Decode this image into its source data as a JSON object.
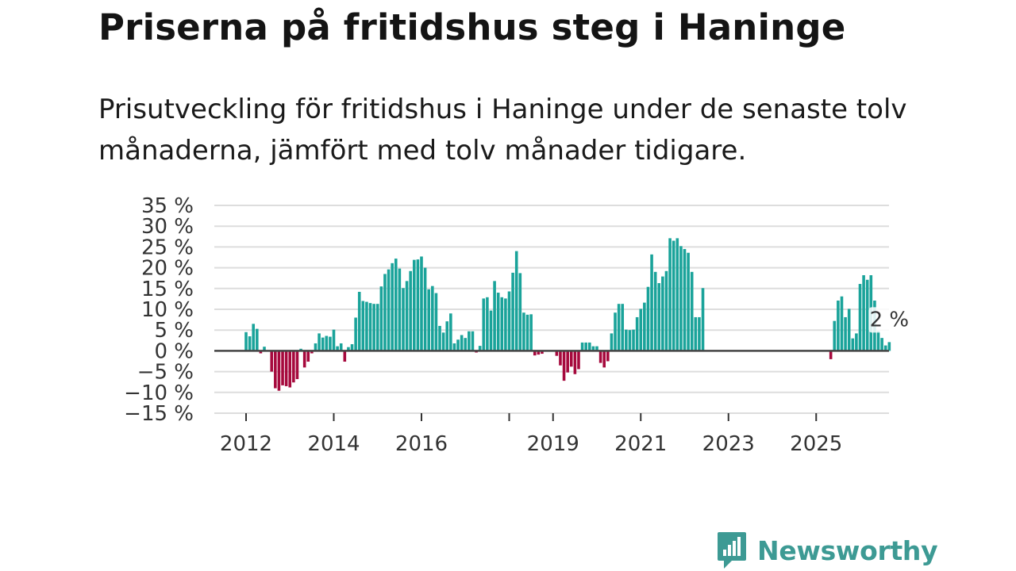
{
  "header": {
    "title": "Priserna på fritidshus steg i Haninge",
    "subtitle": "Prisutveckling för fritidshus i Haninge under de senaste tolv månaderna, jämfört med tolv månader tidigare."
  },
  "brand": {
    "name": "Newsworthy"
  },
  "colors": {
    "positive": "#1aa39a",
    "negative": "#a6093d",
    "grid": "#dddddd",
    "zero": "#444444",
    "brand": "#3d9a94"
  },
  "chart_data": {
    "type": "bar",
    "title": "Priserna på fritidshus steg i Haninge",
    "xlabel": "",
    "ylabel": "",
    "unit": "%",
    "ylim": [
      -15,
      35
    ],
    "y_ticks": [
      35,
      30,
      25,
      20,
      15,
      10,
      5,
      0,
      -5,
      -10,
      -15
    ],
    "y_tick_labels": [
      "35 %",
      "30 %",
      "25 %",
      "20 %",
      "15 %",
      "10 %",
      "5 %",
      "0 %",
      "−5 %",
      "−10 %",
      "−15 %"
    ],
    "x_ticks": [
      {
        "year": 2012,
        "label": "2012"
      },
      {
        "year": 2014,
        "label": "2014"
      },
      {
        "year": 2016,
        "label": "2016"
      },
      {
        "year": 2019,
        "label": "2019"
      },
      {
        "year": 2021,
        "label": "2021"
      },
      {
        "year": 2023,
        "label": "2023"
      },
      {
        "year": 2025,
        "label": "2025"
      }
    ],
    "tick_marks_years": [
      2012,
      2014,
      2016,
      2018,
      2019,
      2021,
      2023,
      2025
    ],
    "annotation": {
      "label": "2 %",
      "index": "last"
    },
    "series": [
      {
        "name": "Prisutveckling",
        "start": "2012-01",
        "values": [
          4.5,
          3.5,
          6.5,
          5.3,
          -0.6,
          1.0,
          0,
          -5,
          -9,
          -9.6,
          -8.3,
          -8.5,
          -8.8,
          -7.6,
          -6.8,
          0.5,
          -4,
          -2.6,
          -0.6,
          1.8,
          4.2,
          3.2,
          3.6,
          3.4,
          5.1,
          1.1,
          1.8,
          -2.6,
          0.9,
          1.6,
          8,
          14.2,
          12,
          11.8,
          11.5,
          11.3,
          11.3,
          15.5,
          18.5,
          19.6,
          21.1,
          22.2,
          19.8,
          15.1,
          16.8,
          19.2,
          21.9,
          22,
          22.7,
          20,
          14.8,
          15.6,
          13.9,
          6,
          4.4,
          7.1,
          9,
          1.8,
          2.7,
          3.8,
          3.1,
          4.7,
          4.7,
          -0.4,
          1.2,
          12.6,
          12.9,
          9.7,
          16.8,
          14,
          12.9,
          12.6,
          14.3,
          18.8,
          24,
          18.7,
          9.2,
          8.7,
          8.8,
          -1.1,
          -0.9,
          -0.7,
          null,
          null,
          null,
          -1.2,
          -3.5,
          -7.2,
          -5.2,
          -3.8,
          -5.6,
          -4.4,
          2,
          2,
          2,
          1.1,
          1.1,
          -2.9,
          -4,
          -2.5,
          4.2,
          9.2,
          11.3,
          11.3,
          5.1,
          5,
          5.1,
          8.1,
          10.1,
          11.6,
          15.4,
          23.2,
          19,
          16.3,
          17.9,
          19.2,
          27.1,
          26.5,
          27.1,
          25.2,
          24.5,
          23.6,
          19,
          8.1,
          8.1,
          15.1,
          null,
          null,
          null,
          null,
          null,
          null,
          null,
          null,
          null,
          null,
          null,
          null,
          null,
          null,
          null,
          null,
          null,
          null,
          null,
          null,
          null,
          null,
          null,
          null,
          null,
          null,
          null,
          null,
          null,
          null,
          null,
          null,
          null,
          null,
          -2,
          7.2,
          12.1,
          13.1,
          8.1,
          10.1,
          3,
          4.2,
          16.1,
          18.2,
          17.1,
          18.2,
          12.1,
          4.8,
          3.1,
          1.3,
          2.1
        ]
      }
    ]
  }
}
